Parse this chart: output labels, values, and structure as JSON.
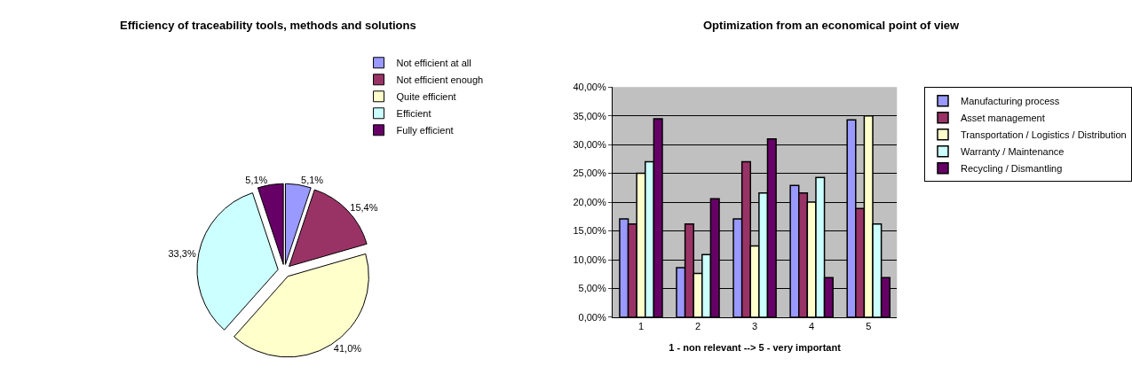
{
  "chart_data": [
    {
      "type": "pie",
      "title": "Efficiency of traceability tools, methods and solutions",
      "categories": [
        "Not efficient at all",
        "Not efficient enough",
        "Quite efficient",
        "Efficient",
        "Fully efficient"
      ],
      "values": [
        5.1,
        15.4,
        41.0,
        33.3,
        5.1
      ],
      "value_labels": [
        "5,1%",
        "15,4%",
        "41,0%",
        "33,3%",
        "5,1%"
      ],
      "colors": [
        "#9999ff",
        "#993366",
        "#ffffcc",
        "#ccffff",
        "#660066"
      ],
      "legend": "top right"
    },
    {
      "type": "bar",
      "title": "Optimization from an economical point of view",
      "xlabel": "1 - non relevant --> 5 - very important",
      "categories": [
        "1",
        "2",
        "3",
        "4",
        "5"
      ],
      "series": [
        {
          "name": "Manufacturing process",
          "color": "#9999ff",
          "values": [
            17.1,
            8.6,
            17.1,
            22.9,
            34.3
          ]
        },
        {
          "name": "Asset management",
          "color": "#993366",
          "values": [
            16.2,
            16.2,
            27.0,
            21.6,
            18.9
          ]
        },
        {
          "name": "Transportation / Logistics / Distribution",
          "color": "#ffffcc",
          "values": [
            25.0,
            7.6,
            12.4,
            20.0,
            35.0
          ]
        },
        {
          "name": "Warranty / Maintenance",
          "color": "#ccffff",
          "values": [
            27.0,
            10.9,
            21.6,
            24.3,
            16.2
          ]
        },
        {
          "name": "Recycling / Dismantling",
          "color": "#660066",
          "values": [
            34.5,
            20.6,
            31.0,
            6.9,
            6.9
          ]
        }
      ],
      "ylim": [
        0,
        40
      ],
      "yticks": [
        {
          "value": 0,
          "label": "0,00%"
        },
        {
          "value": 5,
          "label": "5,00%"
        },
        {
          "value": 10,
          "label": "10,00%"
        },
        {
          "value": 15,
          "label": "15,00%"
        },
        {
          "value": 20,
          "label": "20,00%"
        },
        {
          "value": 25,
          "label": "25,00%"
        },
        {
          "value": 30,
          "label": "30,00%"
        },
        {
          "value": 35,
          "label": "35,00%"
        },
        {
          "value": 40,
          "label": "40,00%"
        }
      ],
      "grid": "y",
      "legend": "right"
    }
  ]
}
